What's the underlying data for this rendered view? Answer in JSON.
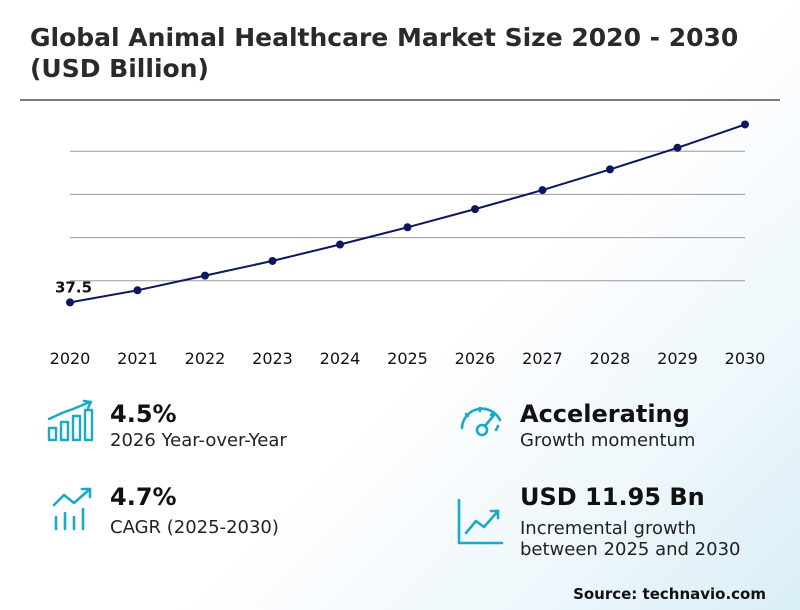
{
  "title": "Global Animal Healthcare Market Size 2020 - 2030 (USD Billion)",
  "chart_data": {
    "type": "line",
    "title": "Global Animal Healthcare Market Size 2020 - 2030 (USD Billion)",
    "xlabel": "",
    "ylabel": "",
    "categories": [
      "2020",
      "2021",
      "2022",
      "2023",
      "2024",
      "2025",
      "2026",
      "2027",
      "2028",
      "2029",
      "2030"
    ],
    "series": [
      {
        "values": [
          37.5,
          38.9,
          40.6,
          42.3,
          44.2,
          46.2,
          48.3,
          50.5,
          52.9,
          55.4,
          58.1
        ]
      }
    ],
    "data_labels": [
      {
        "index": 0,
        "text": "37.5"
      }
    ],
    "ylim": [
      35.0,
      58.5
    ],
    "gridlines": [
      40,
      45,
      50,
      55
    ],
    "grid": true,
    "line_color": "#0d1660",
    "marker_color": "#0d1660"
  },
  "stats": {
    "yoy": {
      "value": "4.5%",
      "label": "2026 Year-over-Year",
      "icon": "bar-chart-growth-icon"
    },
    "momentum": {
      "value": "Accelerating",
      "label": "Growth momentum",
      "icon": "speedometer-icon"
    },
    "cagr": {
      "value": "4.7%",
      "label": "CAGR (2025-2030)",
      "icon": "bar-trend-icon"
    },
    "incremental": {
      "value": "USD 11.95 Bn",
      "label_line1": "Incremental growth",
      "label_line2": "between 2025 and 2030",
      "icon": "line-chart-icon"
    }
  },
  "source": "Source: technavio.com",
  "colors": {
    "accent": "#1aa9c9",
    "line": "#0d1660",
    "grid": "#9a9a9a"
  }
}
